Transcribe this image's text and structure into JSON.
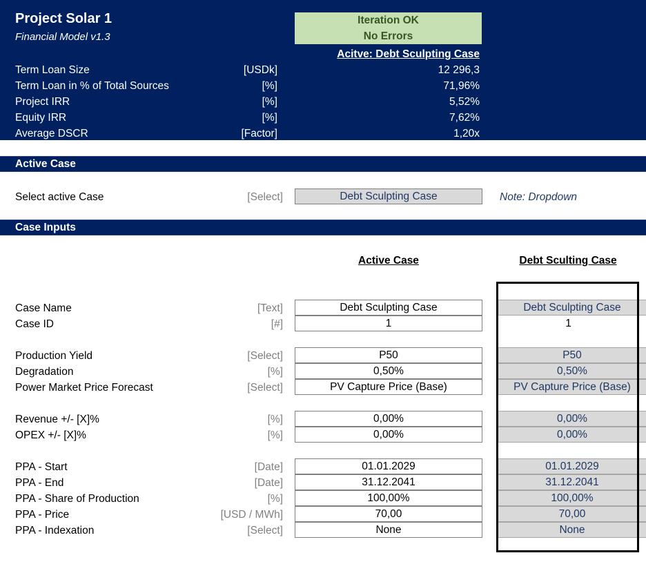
{
  "header": {
    "title": "Project Solar 1",
    "subtitle": "Financial Model v1.3",
    "status_line1": "Iteration OK",
    "status_line2": "No Errors",
    "active_case_label": "Acitve: Debt Sculpting Case",
    "metrics": [
      {
        "label": "Term Loan Size",
        "unit": "[USDk]",
        "value": "12 296,3"
      },
      {
        "label": "Term Loan in % of Total Sources",
        "unit": "[%]",
        "value": "71,96%"
      },
      {
        "label": "Project IRR",
        "unit": "[%]",
        "value": "5,52%"
      },
      {
        "label": "Equity IRR",
        "unit": "[%]",
        "value": "7,62%"
      },
      {
        "label": "Average DSCR",
        "unit": "[Factor]",
        "value": "1,20x"
      }
    ]
  },
  "active_case_section": {
    "title": "Active Case",
    "select_label": "Select active Case",
    "select_unit": "[Select]",
    "select_value": "Debt Sculpting Case",
    "note": "Note: Dropdown"
  },
  "case_inputs": {
    "title": "Case Inputs",
    "col_active": "Active Case",
    "col_debt": "Debt Sculting Case",
    "rows": [
      {
        "label": "Case Name",
        "unit": "[Text]",
        "active": "Debt Sculpting Case",
        "debt": "Debt Sculpting Case"
      },
      {
        "label": "Case ID",
        "unit": "[#]",
        "active": "1",
        "debt": "1"
      },
      {
        "label": "Production Yield",
        "unit": "[Select]",
        "active": "P50",
        "debt": "P50"
      },
      {
        "label": "Degradation",
        "unit": "[%]",
        "active": "0,50%",
        "debt": "0,50%"
      },
      {
        "label": "Power Market Price Forecast",
        "unit": "[Select]",
        "active": "PV Capture Price (Base)",
        "debt": "PV Capture Price (Base)"
      },
      {
        "label": "Revenue +/- [X]%",
        "unit": "[%]",
        "active": "0,00%",
        "debt": "0,00%"
      },
      {
        "label": "OPEX +/- [X]%",
        "unit": "[%]",
        "active": "0,00%",
        "debt": "0,00%"
      },
      {
        "label": "PPA - Start",
        "unit": "[Date]",
        "active": "01.01.2029",
        "debt": "01.01.2029"
      },
      {
        "label": "PPA - End",
        "unit": "[Date]",
        "active": "31.12.2041",
        "debt": "31.12.2041"
      },
      {
        "label": "PPA - Share of Production",
        "unit": "[%]",
        "active": "100,00%",
        "debt": "100,00%"
      },
      {
        "label": "PPA - Price",
        "unit": "[USD / MWh]",
        "active": "70,00",
        "debt": "70,00"
      },
      {
        "label": "PPA - Indexation",
        "unit": "[Select]",
        "active": "None",
        "debt": "None"
      }
    ]
  }
}
